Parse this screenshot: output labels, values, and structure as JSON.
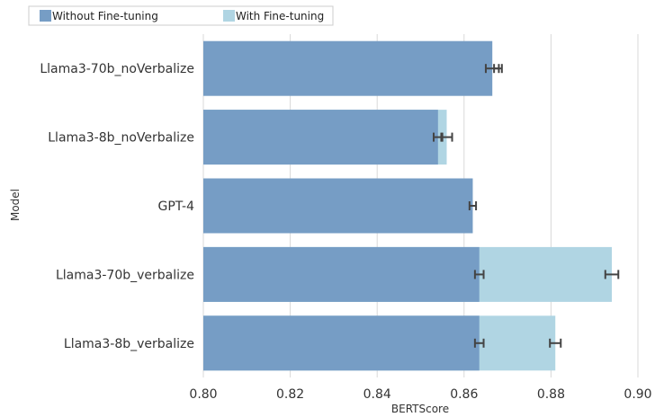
{
  "chart_data": {
    "type": "bar",
    "orientation": "horizontal",
    "xlabel": "BERTScore",
    "ylabel": "Model",
    "xlim": [
      0.8,
      0.9
    ],
    "xticks": [
      "0.80",
      "0.82",
      "0.84",
      "0.86",
      "0.88",
      "0.90"
    ],
    "grid": true,
    "legend_position": "top-left",
    "categories": [
      "Llama3-70b_noVerbalize",
      "Llama3-8b_noVerbalize",
      "GPT-4",
      "Llama3-70b_verbalize",
      "Llama3-8b_verbalize"
    ],
    "series": [
      {
        "name": "Without Fine-tuning",
        "color": "#769dc5",
        "values": [
          0.8665,
          0.854,
          0.862,
          0.8635,
          0.8635
        ],
        "error": [
          0.003,
          0.002,
          0.0015,
          0.002,
          0.002
        ]
      },
      {
        "name": "With Fine-tuning",
        "color": "#b0d5e3",
        "values": [
          null,
          0.856,
          null,
          0.894,
          0.881
        ],
        "error": [
          0.0018,
          0.0025,
          null,
          0.003,
          0.0025
        ]
      }
    ]
  }
}
